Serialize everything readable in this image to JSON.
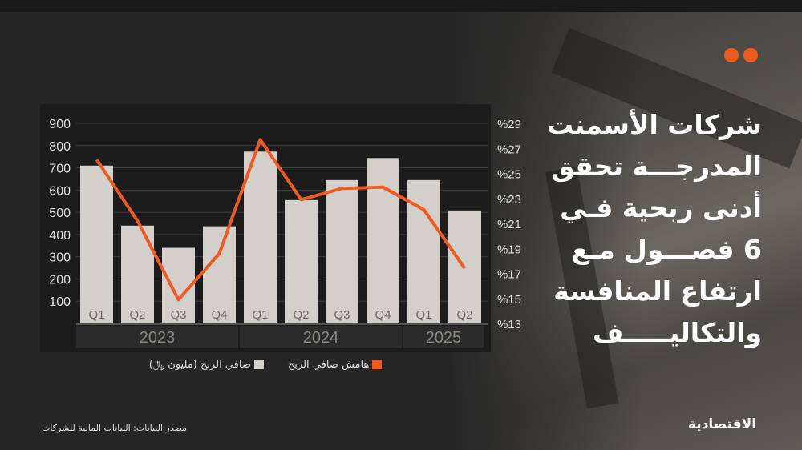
{
  "headline": {
    "lines": [
      "شركات الأسمنت",
      "المدرجـــة تحقق",
      "أدنى ربحية فـي",
      "6 فصـــول مـع",
      "ارتفاع المنافسة",
      "والتكاليـــــف"
    ]
  },
  "legend": {
    "margin_label": "هامش صافي الربح",
    "profit_label": "صافي الربح (مليون ﷼)"
  },
  "source": "مصدر البيانات: البيانات المالية للشركات",
  "logo": "الاقتصادية",
  "colors": {
    "bar": "#d3d0cb",
    "line": "#f15a1f",
    "accent": "#f15a1f"
  },
  "chart_data": {
    "type": "bar+line",
    "categories": [
      "Q1",
      "Q2",
      "Q3",
      "Q4",
      "Q1",
      "Q2",
      "Q3",
      "Q4",
      "Q1",
      "Q2"
    ],
    "years": [
      {
        "label": "2023",
        "span": 4
      },
      {
        "label": "2024",
        "span": 4
      },
      {
        "label": "2025",
        "span": 2
      }
    ],
    "series": [
      {
        "name": "صافي الربح (مليون ﷼)",
        "type": "bar",
        "axis": "left",
        "values": [
          710,
          440,
          340,
          437,
          773,
          555,
          645,
          744,
          645,
          508
        ]
      },
      {
        "name": "هامش صافي الربح",
        "type": "line",
        "axis": "right",
        "values": [
          26.1,
          21.2,
          14.9,
          18.6,
          27.7,
          22.9,
          23.8,
          23.9,
          22.1,
          17.4
        ]
      }
    ],
    "left_axis": {
      "ticks": [
        "100",
        "200",
        "300",
        "400",
        "500",
        "600",
        "700",
        "800",
        "900"
      ],
      "ylim": [
        0,
        900
      ]
    },
    "right_axis": {
      "ticks": [
        "%13",
        "%15",
        "%17",
        "%19",
        "%21",
        "%23",
        "%25",
        "%27",
        "%29"
      ],
      "ylim": [
        13,
        29
      ]
    },
    "grid": true,
    "legend_position": "bottom"
  }
}
